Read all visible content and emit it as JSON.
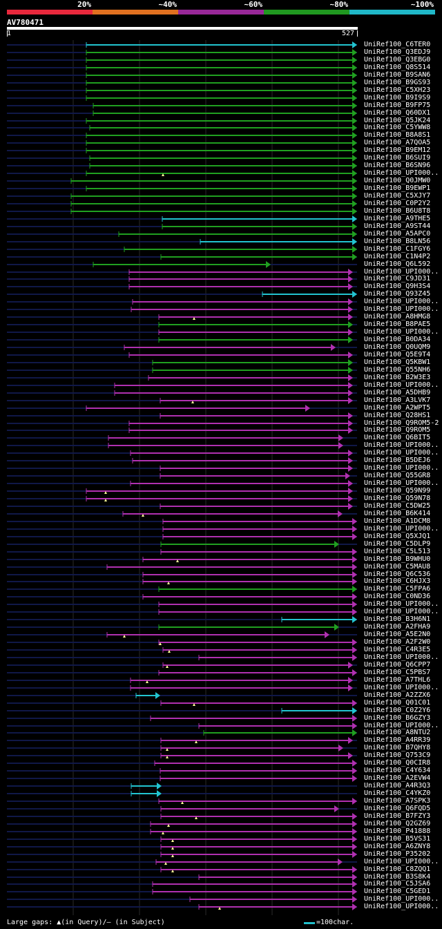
{
  "legend": {
    "segments": [
      {
        "label": "20%",
        "color": "#e8283c"
      },
      {
        "label": "~40%",
        "color": "#e07020"
      },
      {
        "label": "~60%",
        "color": "#982898"
      },
      {
        "label": "~80%",
        "color": "#209820"
      },
      {
        "label": "~100%",
        "color": "#20b8c8"
      }
    ]
  },
  "query": {
    "title": "AV780471",
    "start": "1",
    "end": "527"
  },
  "hits": [
    {
      "name": "UniRef100_C6TER0",
      "start": 125,
      "end": 517,
      "color": "cyan"
    },
    {
      "name": "UniRef100_Q3EDJ9",
      "start": 125,
      "end": 517,
      "color": "green"
    },
    {
      "name": "UniRef100_Q3EBG0",
      "start": 125,
      "end": 517,
      "color": "green"
    },
    {
      "name": "UniRef100_Q8S514",
      "start": 125,
      "end": 517,
      "color": "green"
    },
    {
      "name": "UniRef100_B9SAN6",
      "start": 125,
      "end": 517,
      "color": "green"
    },
    {
      "name": "UniRef100_B9GS93",
      "start": 125,
      "end": 517,
      "color": "green"
    },
    {
      "name": "UniRef100_C5XH23",
      "start": 125,
      "end": 517,
      "color": "green"
    },
    {
      "name": "UniRef100_B9I9S9",
      "start": 125,
      "end": 517,
      "color": "green"
    },
    {
      "name": "UniRef100_B9FP75",
      "start": 135,
      "end": 517,
      "color": "green"
    },
    {
      "name": "UniRef100_Q60DX1",
      "start": 135,
      "end": 517,
      "color": "green"
    },
    {
      "name": "UniRef100_Q5JK24",
      "start": 125,
      "end": 517,
      "color": "green"
    },
    {
      "name": "UniRef100_C5YWW8",
      "start": 130,
      "end": 517,
      "color": "green"
    },
    {
      "name": "UniRef100_B8A8S1",
      "start": 125,
      "end": 517,
      "color": "green"
    },
    {
      "name": "UniRef100_A7QOA5",
      "start": 125,
      "end": 517,
      "color": "green"
    },
    {
      "name": "UniRef100_B9EM12",
      "start": 125,
      "end": 517,
      "color": "green"
    },
    {
      "name": "UniRef100_B6SUI9",
      "start": 130,
      "end": 517,
      "color": "green"
    },
    {
      "name": "UniRef100_B6SN96",
      "start": 130,
      "end": 517,
      "color": "green"
    },
    {
      "name": "UniRef100_UPI000..",
      "start": 125,
      "end": 517,
      "color": "green",
      "gap": 236
    },
    {
      "name": "UniRef100_Q0JMW0",
      "start": 103,
      "end": 517,
      "color": "green"
    },
    {
      "name": "UniRef100_B9EWP1",
      "start": 125,
      "end": 517,
      "color": "green"
    },
    {
      "name": "UniRef100_C5XJY7",
      "start": 103,
      "end": 517,
      "color": "green"
    },
    {
      "name": "UniRef100_C0P2Y2",
      "start": 103,
      "end": 517,
      "color": "green"
    },
    {
      "name": "UniRef100_B6U8T8",
      "start": 103,
      "end": 517,
      "color": "green"
    },
    {
      "name": "UniRef100_A9THE5",
      "start": 235,
      "end": 517,
      "color": "cyan"
    },
    {
      "name": "UniRef100_A9ST44",
      "start": 235,
      "end": 517,
      "color": "green"
    },
    {
      "name": "UniRef100_A5APC0",
      "start": 172,
      "end": 517,
      "color": "green"
    },
    {
      "name": "UniRef100_B8LN56",
      "start": 290,
      "end": 517,
      "color": "cyan"
    },
    {
      "name": "UniRef100_C1FGY6",
      "start": 180,
      "end": 517,
      "color": "green"
    },
    {
      "name": "UniRef100_C1N4P2",
      "start": 233,
      "end": 517,
      "color": "green"
    },
    {
      "name": "UniRef100_Q6L592",
      "start": 135,
      "end": 392,
      "color": "green"
    },
    {
      "name": "UniRef100_UPI000..",
      "start": 187,
      "end": 511,
      "color": "magenta"
    },
    {
      "name": "UniRef100_C9JD31",
      "start": 187,
      "end": 511,
      "color": "magenta"
    },
    {
      "name": "UniRef100_Q9H3S4",
      "start": 187,
      "end": 511,
      "color": "magenta"
    },
    {
      "name": "UniRef100_Q93Z45",
      "start": 380,
      "end": 517,
      "color": "cyan"
    },
    {
      "name": "UniRef100_UPI000..",
      "start": 192,
      "end": 511,
      "color": "magenta"
    },
    {
      "name": "UniRef100_UPI000..",
      "start": 190,
      "end": 511,
      "color": "magenta"
    },
    {
      "name": "UniRef100_A8HMG8",
      "start": 230,
      "end": 511,
      "color": "magenta",
      "gap": 281
    },
    {
      "name": "UniRef100_B8PAE5",
      "start": 230,
      "end": 511,
      "color": "green"
    },
    {
      "name": "UniRef100_UPI000..",
      "start": 230,
      "end": 511,
      "color": "magenta"
    },
    {
      "name": "UniRef100_B0DA34",
      "start": 230,
      "end": 511,
      "color": "green"
    },
    {
      "name": "UniRef100_Q0UQM9",
      "start": 180,
      "end": 486,
      "color": "magenta"
    },
    {
      "name": "UniRef100_Q5E9T4",
      "start": 187,
      "end": 511,
      "color": "magenta"
    },
    {
      "name": "UniRef100_Q5KBW1",
      "start": 221,
      "end": 511,
      "color": "green"
    },
    {
      "name": "UniRef100_Q55NH6",
      "start": 221,
      "end": 511,
      "color": "green"
    },
    {
      "name": "UniRef100_B2W3E3",
      "start": 215,
      "end": 511,
      "color": "magenta"
    },
    {
      "name": "UniRef100_UPI000..",
      "start": 166,
      "end": 511,
      "color": "magenta"
    },
    {
      "name": "UniRef100_A5DHB9",
      "start": 166,
      "end": 511,
      "color": "magenta"
    },
    {
      "name": "UniRef100_A3LVK7",
      "start": 232,
      "end": 511,
      "color": "magenta",
      "gap": 279
    },
    {
      "name": "UniRef100_A2WPT5",
      "start": 125,
      "end": 449,
      "color": "magenta"
    },
    {
      "name": "UniRef100_Q28HS1",
      "start": 232,
      "end": 511,
      "color": "magenta"
    },
    {
      "name": "UniRef100_Q9ROM5-2",
      "start": 187,
      "end": 511,
      "color": "magenta"
    },
    {
      "name": "UniRef100_Q9ROM5",
      "start": 187,
      "end": 511,
      "color": "magenta"
    },
    {
      "name": "UniRef100_Q6BIT5",
      "start": 157,
      "end": 497,
      "color": "magenta"
    },
    {
      "name": "UniRef100_UPI000..",
      "start": 157,
      "end": 497,
      "color": "magenta"
    },
    {
      "name": "UniRef100_UPI000..",
      "start": 189,
      "end": 511,
      "color": "magenta"
    },
    {
      "name": "UniRef100_B5DEJ6",
      "start": 192,
      "end": 511,
      "color": "magenta"
    },
    {
      "name": "UniRef100_UPI000..",
      "start": 232,
      "end": 511,
      "color": "magenta"
    },
    {
      "name": "UniRef100_Q55GR8",
      "start": 232,
      "end": 507,
      "color": "magenta"
    },
    {
      "name": "UniRef100_UPI000..",
      "start": 189,
      "end": 511,
      "color": "magenta"
    },
    {
      "name": "UniRef100_Q59N99",
      "start": 125,
      "end": 511,
      "color": "magenta",
      "gap": 153
    },
    {
      "name": "UniRef100_Q59N78",
      "start": 125,
      "end": 511,
      "color": "magenta",
      "gap": 153
    },
    {
      "name": "UniRef100_C5DW25",
      "start": 232,
      "end": 511,
      "color": "magenta"
    },
    {
      "name": "UniRef100_B6K414",
      "start": 178,
      "end": 496,
      "color": "magenta",
      "gap": 207
    },
    {
      "name": "UniRef100_A1DCM8",
      "start": 236,
      "end": 517,
      "color": "magenta"
    },
    {
      "name": "UniRef100_UPI000..",
      "start": 236,
      "end": 517,
      "color": "magenta"
    },
    {
      "name": "UniRef100_Q5XJQ1",
      "start": 236,
      "end": 517,
      "color": "magenta"
    },
    {
      "name": "UniRef100_C5DLP9",
      "start": 233,
      "end": 491,
      "color": "green"
    },
    {
      "name": "UniRef100_C5L513",
      "start": 233,
      "end": 517,
      "color": "magenta"
    },
    {
      "name": "UniRef100_B9WHU0",
      "start": 207,
      "end": 517,
      "color": "magenta",
      "gap": 257
    },
    {
      "name": "UniRef100_C5MAU8",
      "start": 155,
      "end": 517,
      "color": "magenta"
    },
    {
      "name": "UniRef100_Q6C536",
      "start": 207,
      "end": 517,
      "color": "magenta"
    },
    {
      "name": "UniRef100_C6HJX3",
      "start": 207,
      "end": 517,
      "color": "magenta",
      "gap": 244
    },
    {
      "name": "UniRef100_C5FPA6",
      "start": 230,
      "end": 517,
      "color": "green"
    },
    {
      "name": "UniRef100_C0ND36",
      "start": 207,
      "end": 517,
      "color": "magenta"
    },
    {
      "name": "UniRef100_UPI000..",
      "start": 230,
      "end": 517,
      "color": "magenta"
    },
    {
      "name": "UniRef100_UPI000..",
      "start": 230,
      "end": 517,
      "color": "magenta"
    },
    {
      "name": "UniRef100_B3H6N1",
      "start": 408,
      "end": 517,
      "color": "cyan"
    },
    {
      "name": "UniRef100_A2FHA9",
      "start": 230,
      "end": 491,
      "color": "green"
    },
    {
      "name": "UniRef100_A5E2N0",
      "start": 155,
      "end": 477,
      "color": "magenta",
      "gap": 180
    },
    {
      "name": "UniRef100_A2F2W0",
      "start": 230,
      "end": 517,
      "color": "magenta",
      "gap": 232
    },
    {
      "name": "UniRef100_C4R3E5",
      "start": 236,
      "end": 517,
      "color": "magenta",
      "gap": 245
    },
    {
      "name": "UniRef100_UPI000..",
      "start": 288,
      "end": 517,
      "color": "magenta"
    },
    {
      "name": "UniRef100_Q6CPP7",
      "start": 236,
      "end": 511,
      "color": "magenta",
      "gap": 242
    },
    {
      "name": "UniRef100_C5PBS7",
      "start": 230,
      "end": 517,
      "color": "magenta"
    },
    {
      "name": "UniRef100_A7THL6",
      "start": 189,
      "end": 511,
      "color": "magenta",
      "gap": 213
    },
    {
      "name": "UniRef100_UPI000..",
      "start": 189,
      "end": 511,
      "color": "magenta"
    },
    {
      "name": "UniRef100_A2ZZX6",
      "start": 197,
      "end": 232,
      "color": "cyan"
    },
    {
      "name": "UniRef100_Q01C01",
      "start": 233,
      "end": 517,
      "color": "magenta",
      "gap": 281
    },
    {
      "name": "UniRef100_C0Z2Y6",
      "start": 408,
      "end": 517,
      "color": "cyan"
    },
    {
      "name": "UniRef100_B6GZY3",
      "start": 218,
      "end": 517,
      "color": "magenta"
    },
    {
      "name": "UniRef100_UPI000..",
      "start": 288,
      "end": 517,
      "color": "magenta"
    },
    {
      "name": "UniRef100_A8NTU2",
      "start": 295,
      "end": 517,
      "color": "green"
    },
    {
      "name": "UniRef100_A4RR39",
      "start": 233,
      "end": 511,
      "color": "magenta",
      "gap": 284
    },
    {
      "name": "UniRef100_B7QHY8",
      "start": 233,
      "end": 497,
      "color": "magenta",
      "gap": 242
    },
    {
      "name": "UniRef100_Q753C9",
      "start": 233,
      "end": 511,
      "color": "magenta",
      "gap": 242
    },
    {
      "name": "UniRef100_Q0CIR8",
      "start": 224,
      "end": 517,
      "color": "magenta"
    },
    {
      "name": "UniRef100_C4Y634",
      "start": 232,
      "end": 517,
      "color": "magenta"
    },
    {
      "name": "UniRef100_A2EVW4",
      "start": 232,
      "end": 517,
      "color": "magenta"
    },
    {
      "name": "UniRef100_A4R3Q3",
      "start": 190,
      "end": 234,
      "color": "cyan"
    },
    {
      "name": "UniRef100_C4YKZ0",
      "start": 190,
      "end": 234,
      "color": "cyan"
    },
    {
      "name": "UniRef100_A7SPK3",
      "start": 230,
      "end": 517,
      "color": "magenta",
      "gap": 264
    },
    {
      "name": "UniRef100_Q6FQD5",
      "start": 233,
      "end": 491,
      "color": "magenta"
    },
    {
      "name": "UniRef100_B7FZY3",
      "start": 233,
      "end": 517,
      "color": "magenta",
      "gap": 284
    },
    {
      "name": "UniRef100_Q2GZ69",
      "start": 218,
      "end": 517,
      "color": "magenta",
      "gap": 244
    },
    {
      "name": "UniRef100_P41888",
      "start": 218,
      "end": 517,
      "color": "magenta",
      "gap": 236
    },
    {
      "name": "UniRef100_B5VS31",
      "start": 233,
      "end": 517,
      "color": "magenta",
      "gap": 250
    },
    {
      "name": "UniRef100_A6ZNY8",
      "start": 233,
      "end": 517,
      "color": "magenta",
      "gap": 250
    },
    {
      "name": "UniRef100_P35202",
      "start": 233,
      "end": 517,
      "color": "magenta",
      "gap": 250
    },
    {
      "name": "UniRef100_UPI000..",
      "start": 226,
      "end": 496,
      "color": "magenta",
      "gap": 240
    },
    {
      "name": "UniRef100_C8ZQQ1",
      "start": 233,
      "end": 517,
      "color": "magenta",
      "gap": 250
    },
    {
      "name": "UniRef100_B3S8K4",
      "start": 288,
      "end": 517,
      "color": "magenta"
    },
    {
      "name": "UniRef100_C5JSA6",
      "start": 221,
      "end": 517,
      "color": "magenta"
    },
    {
      "name": "UniRef100_C5GED1",
      "start": 221,
      "end": 517,
      "color": "magenta"
    },
    {
      "name": "UniRef100_UPI000..",
      "start": 275,
      "end": 517,
      "color": "magenta"
    },
    {
      "name": "UniRef100_UPI000..",
      "start": 288,
      "end": 517,
      "color": "magenta",
      "gap": 318
    }
  ],
  "colors": {
    "cyan": "#22c4d0",
    "green": "#20a020",
    "magenta": "#b030b0",
    "track": "#101848",
    "grid": "#2a2a2a",
    "gap": "#ffff99"
  },
  "footer": {
    "left": "Large gaps: ▲(in Query)/– (in Subject)",
    "scale": "=100char."
  }
}
